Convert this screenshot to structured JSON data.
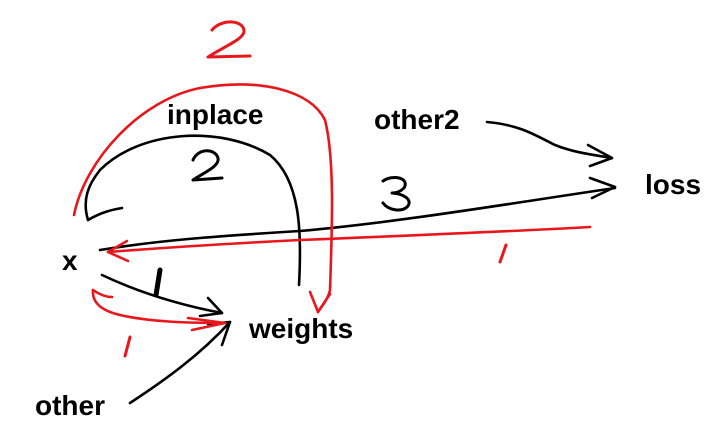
{
  "nodes": {
    "x": "x",
    "inplace": "inplace",
    "weights": "weights",
    "other": "other",
    "other2": "other2",
    "loss": "loss"
  },
  "colors": {
    "forward": "#000000",
    "backward": "#e8171c"
  }
}
